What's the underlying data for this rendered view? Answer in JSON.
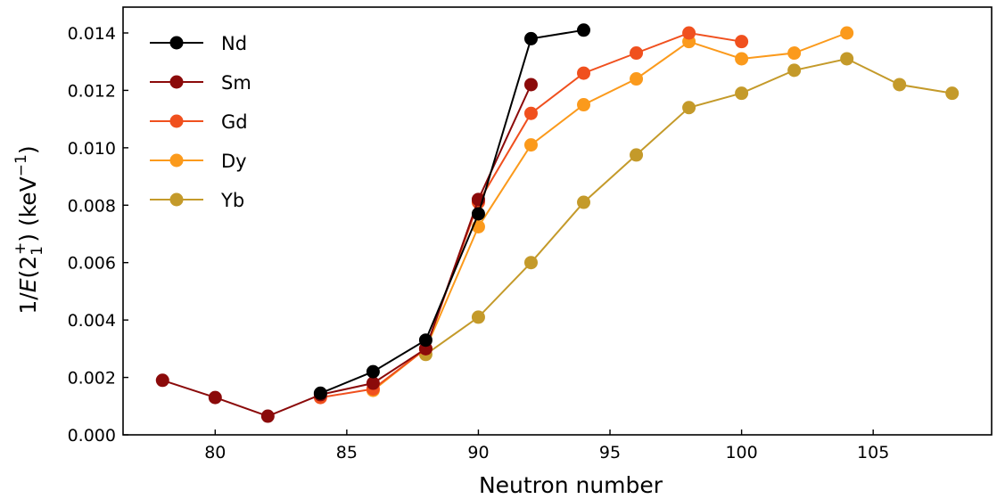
{
  "chart_data": {
    "type": "line",
    "xlabel": "Neutron number",
    "ylabel_prefix": "1/",
    "ylabel_func": "E",
    "ylabel_arg": "(2",
    "ylabel_sub": "1",
    "ylabel_sup": "+",
    "ylabel_unit": ") (keV",
    "ylabel_unit_sup": "−1",
    "ylabel_end": ")",
    "xlim": [
      76.5,
      109.5
    ],
    "ylim": [
      0.0,
      0.0149
    ],
    "x_ticks": [
      80,
      85,
      90,
      95,
      100,
      105
    ],
    "x_tick_labels": [
      "80",
      "85",
      "90",
      "95",
      "100",
      "105"
    ],
    "y_ticks": [
      0.0,
      0.002,
      0.004,
      0.006,
      0.008,
      0.01,
      0.012,
      0.014
    ],
    "y_tick_labels": [
      "0.000",
      "0.002",
      "0.004",
      "0.006",
      "0.008",
      "0.010",
      "0.012",
      "0.014"
    ],
    "grid": false,
    "legend_position": "top-left",
    "series": [
      {
        "name": "Nd",
        "color": "#000000",
        "x": [
          84,
          86,
          88,
          90,
          92,
          94
        ],
        "y": [
          0.00145,
          0.0022,
          0.0033,
          0.0077,
          0.0138,
          0.0141
        ]
      },
      {
        "name": "Sm",
        "color": "#8b0a0a",
        "x": [
          78,
          80,
          82,
          84,
          86,
          88,
          90,
          92
        ],
        "y": [
          0.0019,
          0.0013,
          0.00065,
          0.0014,
          0.0018,
          0.003,
          0.0082,
          0.0122
        ]
      },
      {
        "name": "Gd",
        "color": "#f0501e",
        "x": [
          84,
          86,
          88,
          90,
          92,
          94,
          96,
          98,
          100
        ],
        "y": [
          0.0013,
          0.0016,
          0.003,
          0.0081,
          0.0112,
          0.0126,
          0.0133,
          0.014,
          0.0137
        ]
      },
      {
        "name": "Dy",
        "color": "#fb9a1c",
        "x": [
          86,
          88,
          90,
          92,
          94,
          96,
          98,
          100,
          102,
          104
        ],
        "y": [
          0.00155,
          0.003,
          0.00725,
          0.0101,
          0.0115,
          0.0124,
          0.0137,
          0.0131,
          0.0133,
          0.014
        ]
      },
      {
        "name": "Yb",
        "color": "#c49a2a",
        "x": [
          88,
          90,
          92,
          94,
          96,
          98,
          100,
          102,
          104,
          106,
          108
        ],
        "y": [
          0.0028,
          0.0041,
          0.006,
          0.0081,
          0.00975,
          0.0114,
          0.0119,
          0.0127,
          0.0131,
          0.0122,
          0.0119
        ]
      }
    ]
  }
}
